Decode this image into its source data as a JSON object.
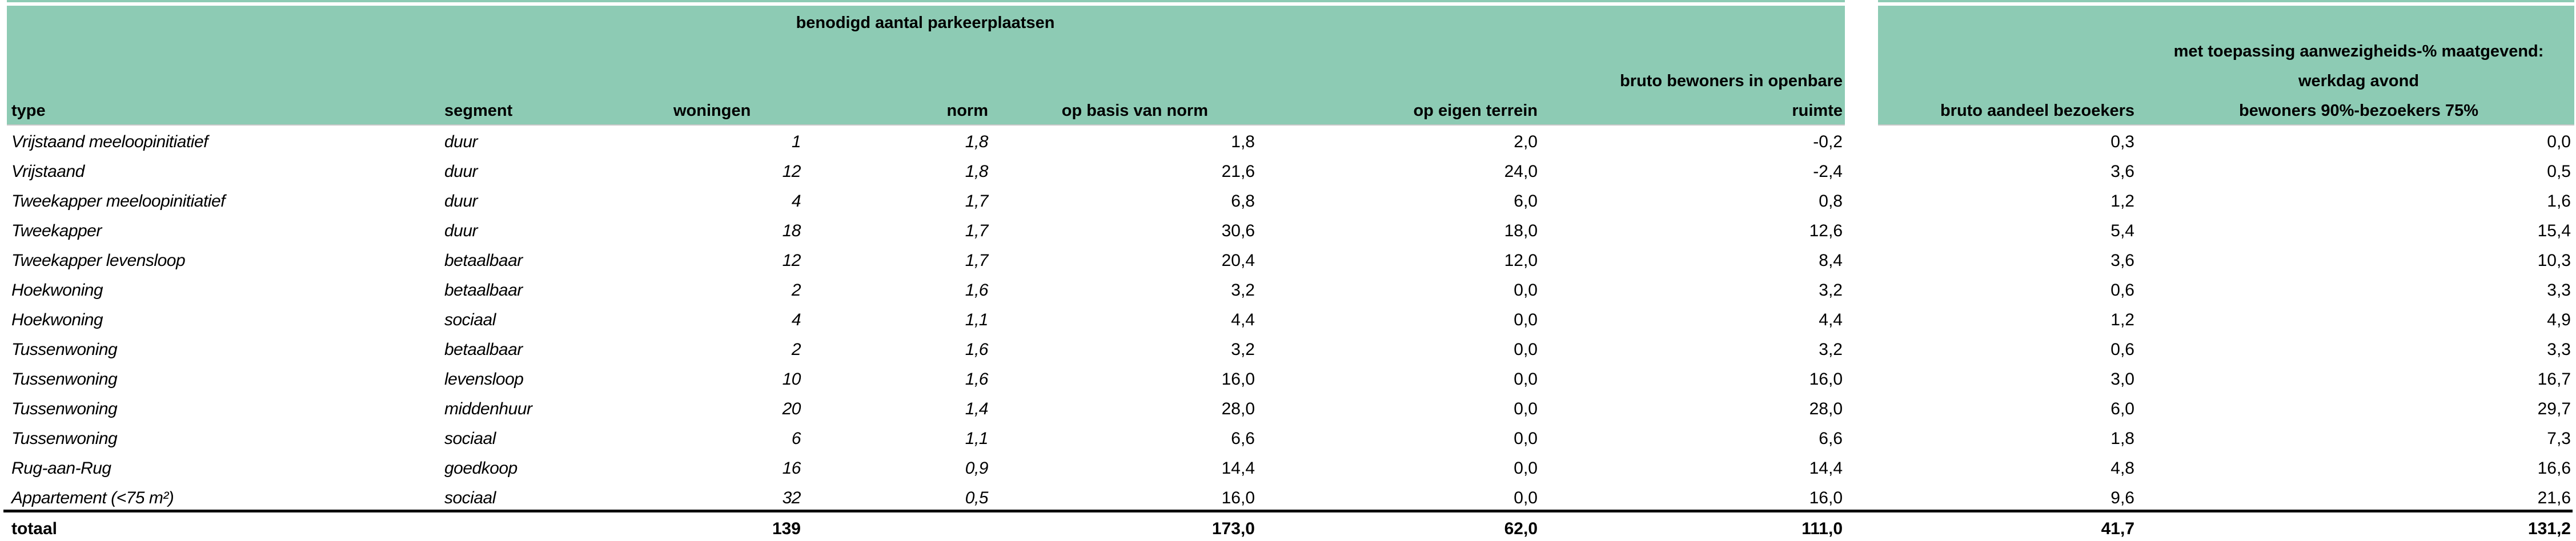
{
  "table": {
    "section_title": "benodigd aantal parkeerplaatsen",
    "header_green": "#8DCBB4",
    "columns": [
      {
        "label": "type"
      },
      {
        "label": "segment"
      },
      {
        "label": "woningen"
      },
      {
        "label": "norm"
      },
      {
        "label": "op basis van norm"
      },
      {
        "label": "op eigen terrein"
      },
      {
        "label": "bruto bewoners in openbare\nruimte"
      },
      {
        "label": "bruto aandeel bezoekers"
      },
      {
        "label": "met toepassing aanwezigheids-% maatgevend:\nwerkdag avond\nbewoners 90%-bezoekers 75%"
      }
    ],
    "rows": [
      [
        "Vrijstaand meeloopinitiatief",
        "duur",
        "1",
        "1,8",
        "1,8",
        "2,0",
        "-0,2",
        "0,3",
        "0,0"
      ],
      [
        "Vrijstaand",
        "duur",
        "12",
        "1,8",
        "21,6",
        "24,0",
        "-2,4",
        "3,6",
        "0,5"
      ],
      [
        "Tweekapper meeloopinitiatief",
        "duur",
        "4",
        "1,7",
        "6,8",
        "6,0",
        "0,8",
        "1,2",
        "1,6"
      ],
      [
        "Tweekapper",
        "duur",
        "18",
        "1,7",
        "30,6",
        "18,0",
        "12,6",
        "5,4",
        "15,4"
      ],
      [
        "Tweekapper levensloop",
        "betaalbaar",
        "12",
        "1,7",
        "20,4",
        "12,0",
        "8,4",
        "3,6",
        "10,3"
      ],
      [
        "Hoekwoning",
        "betaalbaar",
        "2",
        "1,6",
        "3,2",
        "0,0",
        "3,2",
        "0,6",
        "3,3"
      ],
      [
        "Hoekwoning",
        "sociaal",
        "4",
        "1,1",
        "4,4",
        "0,0",
        "4,4",
        "1,2",
        "4,9"
      ],
      [
        "Tussenwoning",
        "betaalbaar",
        "2",
        "1,6",
        "3,2",
        "0,0",
        "3,2",
        "0,6",
        "3,3"
      ],
      [
        "Tussenwoning",
        "levensloop",
        "10",
        "1,6",
        "16,0",
        "0,0",
        "16,0",
        "3,0",
        "16,7"
      ],
      [
        "Tussenwoning",
        "middenhuur",
        "20",
        "1,4",
        "28,0",
        "0,0",
        "28,0",
        "6,0",
        "29,7"
      ],
      [
        "Tussenwoning",
        "sociaal",
        "6",
        "1,1",
        "6,6",
        "0,0",
        "6,6",
        "1,8",
        "7,3"
      ],
      [
        "Rug-aan-Rug",
        "goedkoop",
        "16",
        "0,9",
        "14,4",
        "0,0",
        "14,4",
        "4,8",
        "16,6"
      ],
      [
        "Appartement (<75 m²)",
        "sociaal",
        "32",
        "0,5",
        "16,0",
        "0,0",
        "16,0",
        "9,6",
        "21,6"
      ]
    ],
    "total_row": [
      "totaal",
      "",
      "139",
      "",
      "173,0",
      "62,0",
      "111,0",
      "41,7",
      "131,2"
    ]
  }
}
